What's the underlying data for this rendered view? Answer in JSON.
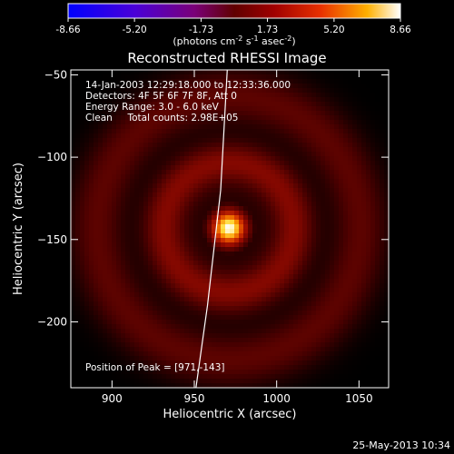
{
  "chart_data": {
    "type": "heatmap",
    "title": "Reconstructed RHESSI Image",
    "xlabel": "Heliocentric X (arcsec)",
    "ylabel": "Heliocentric Y (arcsec)",
    "xlim": [
      875,
      1068
    ],
    "ylim": [
      -240,
      -47
    ],
    "xticks": [
      900,
      950,
      1000,
      1050
    ],
    "yticks": [
      -50,
      -100,
      -150,
      -200
    ],
    "colorbar": {
      "ticks": [
        "-8.66",
        "-5.20",
        "-1.73",
        "1.73",
        "5.20",
        "8.66"
      ],
      "range": [
        -8.66,
        8.66
      ],
      "unit_prefix": "(photons cm",
      "unit_exp1": "-2",
      "unit_mid": " s",
      "unit_exp2": "-1",
      "unit_mid2": " asec",
      "unit_exp3": "-2",
      "unit_suffix": ")"
    },
    "info_lines": [
      "14-Jan-2003 12:29:18.000 to 12:33:36.000",
      "Detectors: 4F 5F 6F 7F 8F, Att 0",
      "Energy Range: 3.0 - 6.0 keV",
      "Clean     Total counts: 2.98E+05"
    ],
    "peak_label": "Position of Peak = [971,-143]",
    "peak": {
      "x": 971,
      "y": -143
    },
    "limb_points": [
      [
        970,
        -47
      ],
      [
        966,
        -120
      ],
      [
        958,
        -190
      ],
      [
        951,
        -240
      ]
    ]
  },
  "footer": {
    "date": "25-May-2013 10:34"
  }
}
